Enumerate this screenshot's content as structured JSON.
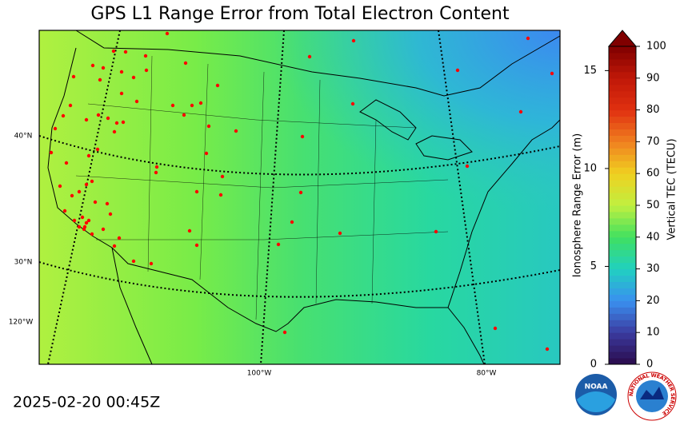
{
  "title": "GPS L1 Range Error from Total Electron Content",
  "timestamp": "2025-02-20 00:45Z",
  "map": {
    "lat_labels": [
      "40°N",
      "30°N"
    ],
    "lon_labels": [
      "120°W",
      "100°W",
      "80°W"
    ]
  },
  "colorbar": {
    "tec_label": "Vertical TEC (TECU)",
    "tec_lim": [
      0,
      100
    ],
    "tec_ticks": [
      0,
      10,
      20,
      30,
      40,
      50,
      60,
      70,
      80,
      90,
      100
    ],
    "range_label": "Ionosphere Range Error (m)",
    "range_lim": [
      0,
      16.24
    ],
    "range_ticks": [
      0,
      5,
      10,
      15
    ],
    "colormap": [
      "#2a0a4a",
      "#3b3ba0",
      "#3a90f0",
      "#20d0c0",
      "#40e060",
      "#c0f040",
      "#f0d020",
      "#f08020",
      "#e03010",
      "#c01808",
      "#800000"
    ]
  },
  "logos": {
    "noaa": "NOAA",
    "nws": "NATIONAL WEATHER SERVICE"
  }
}
